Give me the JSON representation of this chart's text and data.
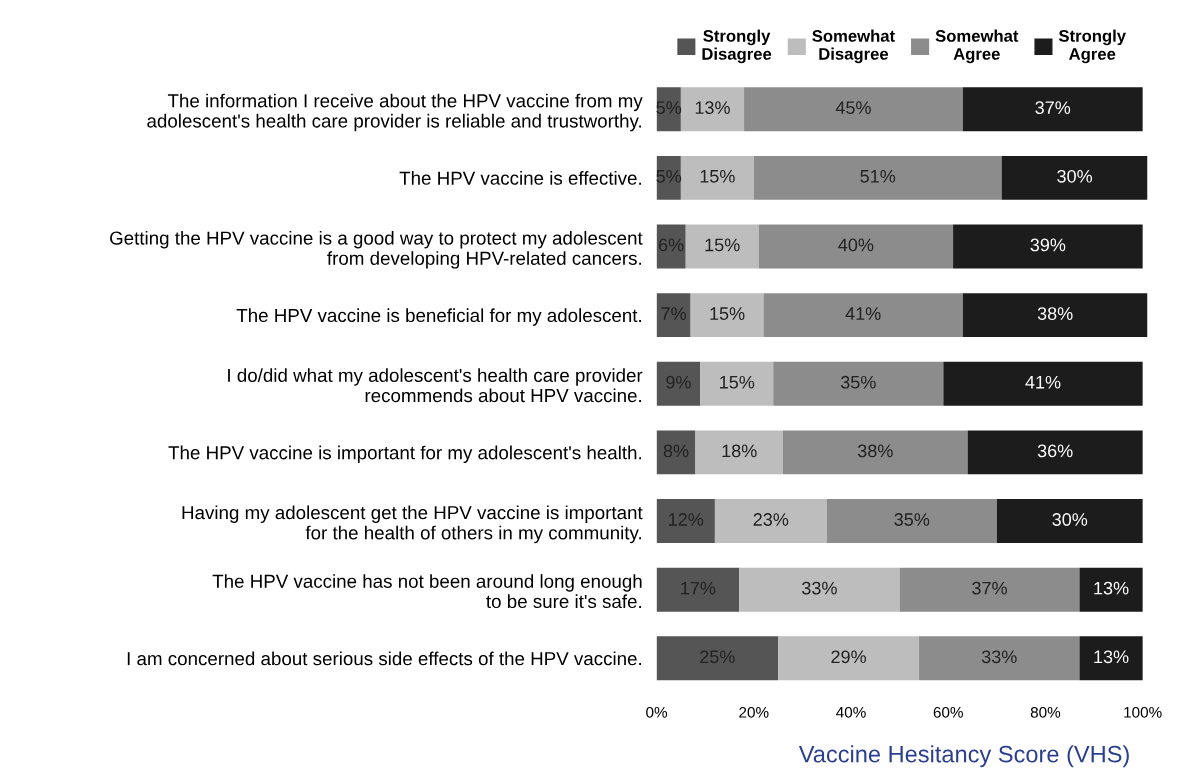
{
  "chart_data": {
    "type": "bar",
    "orientation": "horizontal",
    "stacked": true,
    "xlabel": "Vaccine Hesitancy Score (VHS)",
    "categories": [
      "The information I receive about the HPV vaccine from my\nadolescent's health care provider is reliable and trustworthy.",
      "The HPV vaccine is effective.",
      "Getting the HPV vaccine is a good way to protect my adolescent\nfrom developing HPV-related cancers.",
      "The HPV vaccine is beneficial for my adolescent.",
      "I do/did what my adolescent's health care provider\nrecommends about HPV vaccine.",
      "The HPV vaccine is important for my adolescent's health.",
      "Having my adolescent get the HPV vaccine is important\nfor the health of others in my community.",
      "The HPV vaccine has not been around long enough\nto be sure it's safe.",
      "I am concerned about serious side effects of the HPV vaccine."
    ],
    "series": [
      {
        "name": "Strongly\nDisagree",
        "color": "#555555",
        "values": [
          5,
          5,
          6,
          7,
          9,
          8,
          12,
          17,
          25
        ],
        "value_labels": [
          "5%",
          "5%",
          "6%",
          "7%",
          "9%",
          "8%",
          "12%",
          "17%",
          "25%"
        ]
      },
      {
        "name": "Somewhat\nDisagree",
        "color": "#bdbdbd",
        "values": [
          13,
          15,
          15,
          15,
          15,
          18,
          23,
          33,
          29
        ],
        "value_labels": [
          "13%",
          "15%",
          "15%",
          "15%",
          "15%",
          "18%",
          "23%",
          "33%",
          "29%"
        ]
      },
      {
        "name": "Somewhat\nAgree",
        "color": "#8c8c8c",
        "values": [
          45,
          51,
          40,
          41,
          35,
          38,
          35,
          37,
          33
        ],
        "value_labels": [
          "45%",
          "51%",
          "40%",
          "41%",
          "35%",
          "38%",
          "35%",
          "37%",
          "33%"
        ]
      },
      {
        "name": "Strongly\nAgree",
        "color": "#1c1c1c",
        "values": [
          37,
          30,
          39,
          38,
          41,
          36,
          30,
          13,
          13
        ],
        "value_labels": [
          "37%",
          "30%",
          "39%",
          "38%",
          "41%",
          "36%",
          "30%",
          "13%",
          "13%"
        ]
      }
    ],
    "xlim": [
      0,
      101
    ],
    "xticks": [
      {
        "value": 0,
        "label": "0%"
      },
      {
        "value": 20,
        "label": "20%"
      },
      {
        "value": 40,
        "label": "40%"
      },
      {
        "value": 60,
        "label": "60%"
      },
      {
        "value": 80,
        "label": "80%"
      },
      {
        "value": 100,
        "label": "100%"
      }
    ],
    "legend": "top",
    "grid": false
  }
}
